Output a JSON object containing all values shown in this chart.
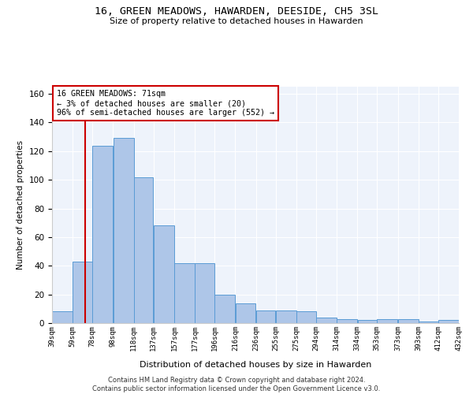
{
  "title": "16, GREEN MEADOWS, HAWARDEN, DEESIDE, CH5 3SL",
  "subtitle": "Size of property relative to detached houses in Hawarden",
  "xlabel_bottom": "Distribution of detached houses by size in Hawarden",
  "ylabel": "Number of detached properties",
  "footer_line1": "Contains HM Land Registry data © Crown copyright and database right 2024.",
  "footer_line2": "Contains public sector information licensed under the Open Government Licence v3.0.",
  "annotation_line1": "16 GREEN MEADOWS: 71sqm",
  "annotation_line2": "← 3% of detached houses are smaller (20)",
  "annotation_line3": "96% of semi-detached houses are larger (552) →",
  "bar_left_edges": [
    39,
    59,
    78,
    98,
    118,
    137,
    157,
    177,
    196,
    216,
    236,
    255,
    275,
    294,
    314,
    334,
    353,
    373,
    393,
    412
  ],
  "bar_widths": [
    20,
    19,
    20,
    20,
    19,
    20,
    20,
    19,
    20,
    20,
    19,
    20,
    19,
    20,
    20,
    19,
    20,
    20,
    19,
    20
  ],
  "bar_heights": [
    8,
    43,
    124,
    129,
    102,
    68,
    42,
    42,
    20,
    14,
    9,
    9,
    8,
    4,
    3,
    2,
    3,
    3,
    1,
    2
  ],
  "bar_color": "#aec6e8",
  "bar_edge_color": "#5a9bd5",
  "redline_x": 71,
  "ylim": [
    0,
    165
  ],
  "yticks": [
    0,
    20,
    40,
    60,
    80,
    100,
    120,
    140,
    160
  ],
  "bg_color": "#eef3fb",
  "annotation_box_color": "#ffffff",
  "annotation_box_edge": "#cc0000",
  "redline_color": "#cc0000",
  "tick_labels": [
    "39sqm",
    "59sqm",
    "78sqm",
    "98sqm",
    "118sqm",
    "137sqm",
    "157sqm",
    "177sqm",
    "196sqm",
    "216sqm",
    "236sqm",
    "255sqm",
    "275sqm",
    "294sqm",
    "314sqm",
    "334sqm",
    "353sqm",
    "373sqm",
    "393sqm",
    "412sqm",
    "432sqm"
  ]
}
